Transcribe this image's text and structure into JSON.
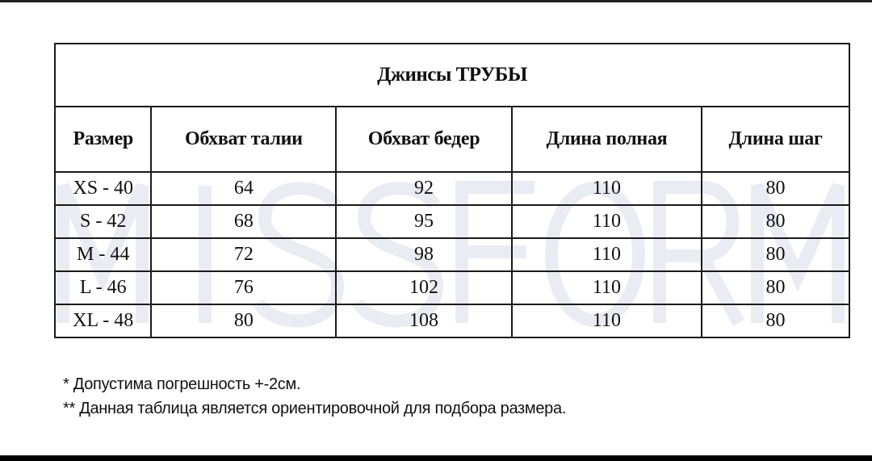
{
  "watermark": "MISSFORM",
  "table": {
    "title": "Джинсы ТРУБЫ",
    "headers": [
      "Размер",
      "Обхват талии",
      "Обхват бедер",
      "Длина полная",
      "Длина шаг"
    ],
    "rows": [
      [
        "XS - 40",
        "64",
        "92",
        "110",
        "80"
      ],
      [
        "S - 42",
        "68",
        "95",
        "110",
        "80"
      ],
      [
        "M - 44",
        "72",
        "98",
        "110",
        "80"
      ],
      [
        "L - 46",
        "76",
        "102",
        "110",
        "80"
      ],
      [
        "XL - 48",
        "80",
        "108",
        "110",
        "80"
      ]
    ]
  },
  "notes": [
    "* Допустима погрешность +-2см.",
    "** Данная таблица является ориентировочной для подбора размера."
  ]
}
